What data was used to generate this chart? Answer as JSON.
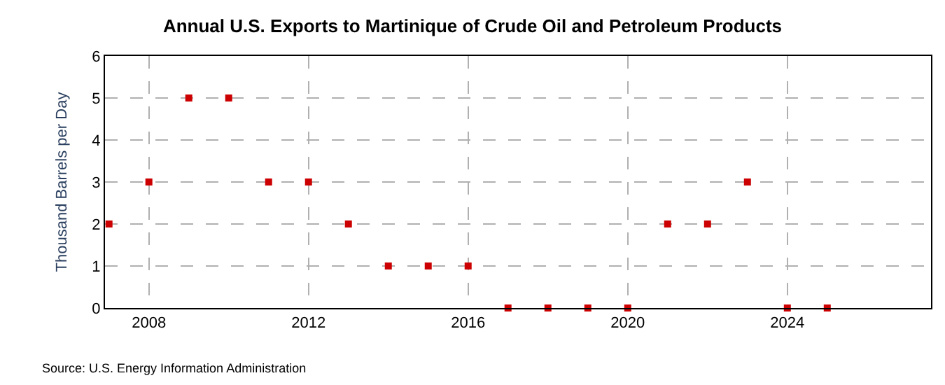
{
  "chart_data": {
    "type": "scatter",
    "title": "Annual U.S. Exports to Martinique of Crude Oil and Petroleum Products",
    "ylabel": "Thousand Barrels per Day",
    "x": [
      2007,
      2008,
      2009,
      2010,
      2011,
      2012,
      2013,
      2014,
      2015,
      2016,
      2017,
      2018,
      2019,
      2020,
      2021,
      2022,
      2023,
      2024,
      2025
    ],
    "series": [
      {
        "color": "#cc0000",
        "values": [
          2,
          3,
          5,
          5,
          3,
          3,
          2,
          1,
          1,
          1,
          0,
          0,
          0,
          0,
          2,
          2,
          3,
          0,
          0
        ]
      }
    ],
    "xlim": [
      2006.9,
      2027.6
    ],
    "xticks": [
      2008,
      2012,
      2016,
      2020,
      2024
    ],
    "ylim": [
      0,
      6
    ],
    "yticks": [
      0,
      1,
      2,
      3,
      4,
      5,
      6
    ],
    "grid": true,
    "marker": "square",
    "annotations": [
      "Source: U.S. Energy Information Administration"
    ]
  }
}
